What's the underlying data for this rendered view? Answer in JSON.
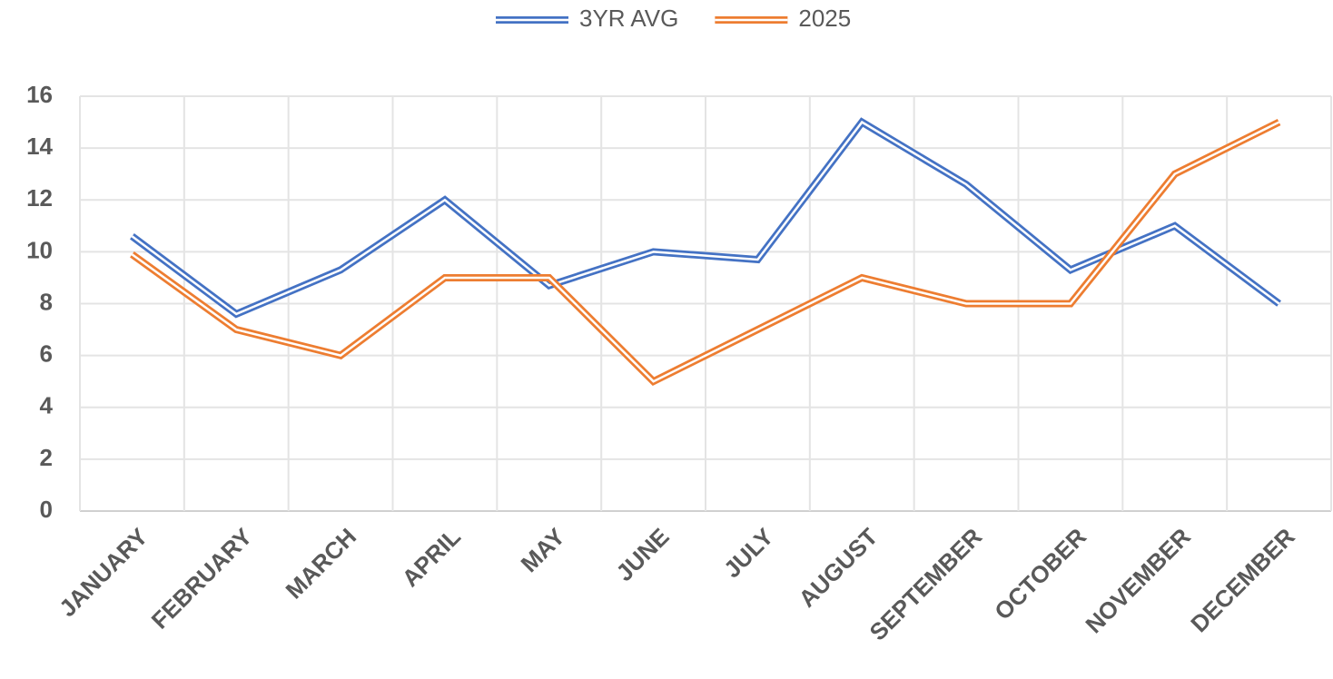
{
  "chart_data": {
    "type": "line",
    "categories": [
      "JANUARY",
      "FEBRUARY",
      "MARCH",
      "APRIL",
      "MAY",
      "JUNE",
      "JULY",
      "AUGUST",
      "SEPTEMBER",
      "OCTOBER",
      "NOVEMBER",
      "DECEMBER"
    ],
    "series": [
      {
        "name": "3YR AVG",
        "color": "#4472c4",
        "values": [
          10.6,
          7.6,
          9.3,
          12,
          8.7,
          10,
          9.7,
          15,
          12.6,
          9.3,
          11,
          8
        ]
      },
      {
        "name": "2025",
        "color": "#ed7d31",
        "values": [
          9.9,
          7,
          6,
          9,
          9,
          5,
          7,
          9,
          8,
          8,
          13,
          15
        ]
      }
    ],
    "ylim": [
      0,
      16
    ],
    "yticks": [
      0,
      2,
      4,
      6,
      8,
      10,
      12,
      14,
      16
    ],
    "grid": true,
    "legend": "top"
  }
}
